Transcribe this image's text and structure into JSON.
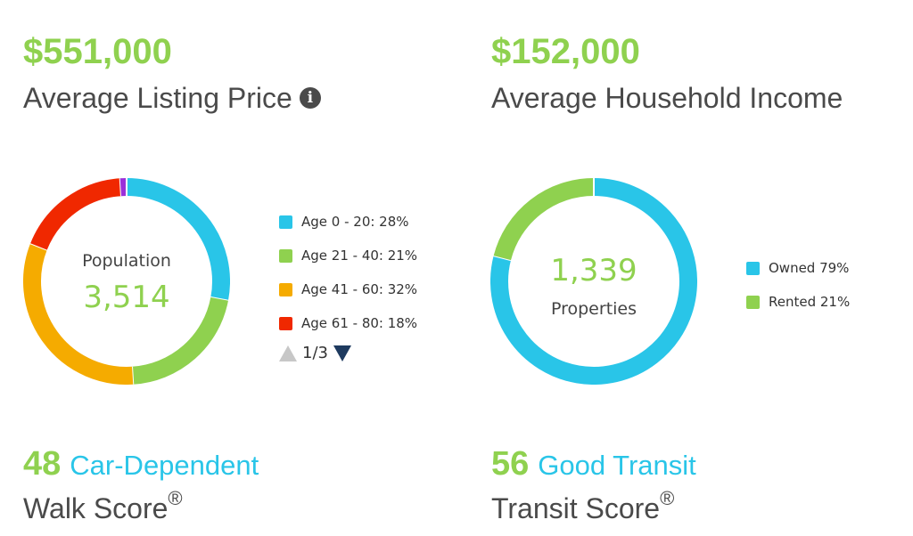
{
  "listing": {
    "price": "$551,000",
    "label": "Average Listing Price",
    "info_glyph": "i"
  },
  "income": {
    "amount": "$152,000",
    "label": "Average Household Income"
  },
  "population": {
    "label": "Population",
    "value": "3,514",
    "legend": [
      {
        "label": "Age 0 - 20: 28%",
        "color": "#29c5e8"
      },
      {
        "label": "Age 21 - 40: 21%",
        "color": "#8fd14f"
      },
      {
        "label": "Age 41 - 60: 32%",
        "color": "#f5ab00"
      },
      {
        "label": "Age 61 - 80: 18%",
        "color": "#f02800"
      }
    ],
    "segments": [
      {
        "value": 28,
        "color": "#29c5e8"
      },
      {
        "value": 21,
        "color": "#8fd14f"
      },
      {
        "value": 32,
        "color": "#f5ab00"
      },
      {
        "value": 18,
        "color": "#f02800"
      },
      {
        "value": 1,
        "color": "#9b30d9"
      }
    ],
    "pager": "1/3"
  },
  "properties": {
    "value": "1,339",
    "label": "Properties",
    "legend": [
      {
        "label": "Owned 79%",
        "color": "#29c5e8"
      },
      {
        "label": "Rented 21%",
        "color": "#8fd14f"
      }
    ],
    "segments": [
      {
        "value": 79,
        "color": "#29c5e8"
      },
      {
        "value": 21,
        "color": "#8fd14f"
      }
    ]
  },
  "walk": {
    "score": "48",
    "desc": "Car-Dependent",
    "label": "Walk Score",
    "mark": "®"
  },
  "transit": {
    "score": "56",
    "desc": "Good Transit",
    "label": "Transit Score",
    "mark": "®"
  }
}
